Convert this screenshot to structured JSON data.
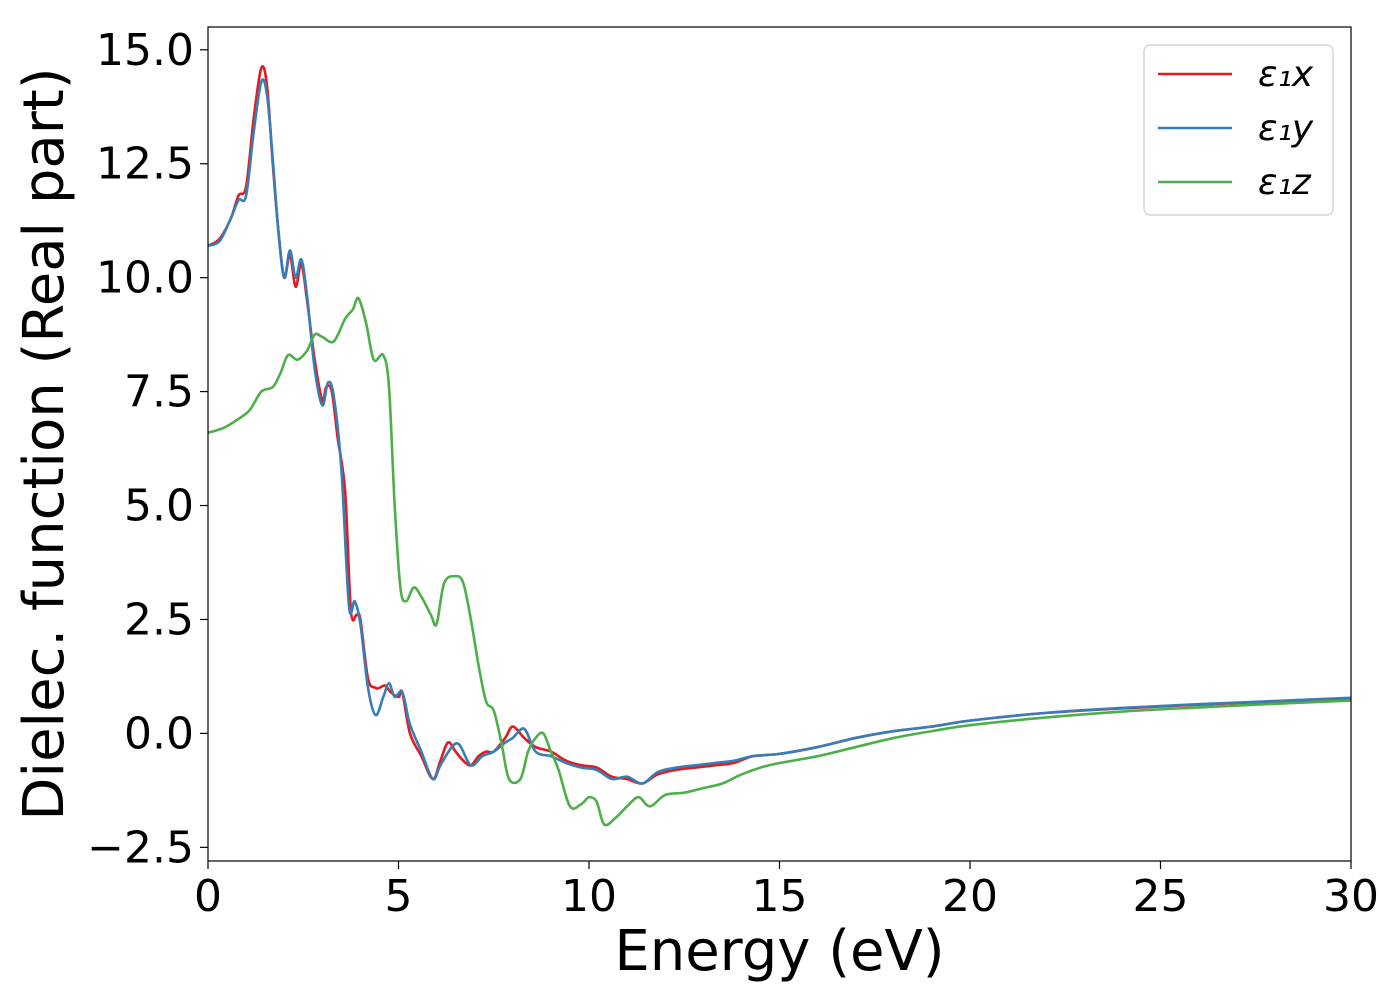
{
  "chart_data": {
    "type": "line",
    "title": "",
    "xlabel": "Energy (eV)",
    "ylabel": "Dielec. function (Real part)",
    "xlim": [
      0,
      30
    ],
    "ylim": [
      -2.8,
      15.5
    ],
    "xticks": [
      0,
      5,
      10,
      15,
      20,
      25,
      30
    ],
    "xtick_labels": [
      "0",
      "5",
      "10",
      "15",
      "20",
      "25",
      "30"
    ],
    "yticks": [
      -2.5,
      0.0,
      2.5,
      5.0,
      7.5,
      10.0,
      12.5,
      15.0
    ],
    "ytick_labels": [
      "−2.5",
      "0.0",
      "2.5",
      "5.0",
      "7.5",
      "10.0",
      "12.5",
      "15.0"
    ],
    "grid": false,
    "legend_position": "top-right",
    "series": [
      {
        "name": "ε₁x",
        "color": "#e41a1c",
        "points": [
          [
            0,
            10.7
          ],
          [
            0.3,
            10.85
          ],
          [
            0.6,
            11.3
          ],
          [
            0.8,
            11.8
          ],
          [
            1.0,
            12.0
          ],
          [
            1.2,
            13.5
          ],
          [
            1.4,
            14.6
          ],
          [
            1.55,
            14.2
          ],
          [
            1.7,
            12.5
          ],
          [
            1.85,
            11.0
          ],
          [
            2.0,
            10.0
          ],
          [
            2.15,
            10.5
          ],
          [
            2.3,
            9.8
          ],
          [
            2.45,
            10.3
          ],
          [
            2.6,
            9.5
          ],
          [
            2.8,
            8.2
          ],
          [
            3.0,
            7.3
          ],
          [
            3.1,
            7.6
          ],
          [
            3.25,
            7.5
          ],
          [
            3.4,
            6.5
          ],
          [
            3.6,
            5.3
          ],
          [
            3.75,
            2.7
          ],
          [
            3.9,
            2.6
          ],
          [
            4.0,
            2.5
          ],
          [
            4.2,
            1.2
          ],
          [
            4.4,
            1.0
          ],
          [
            4.5,
            1.0
          ],
          [
            4.65,
            1.05
          ],
          [
            4.8,
            0.9
          ],
          [
            5.0,
            0.8
          ],
          [
            5.1,
            0.9
          ],
          [
            5.3,
            0.0
          ],
          [
            5.6,
            -0.5
          ],
          [
            5.9,
            -1.0
          ],
          [
            6.1,
            -0.6
          ],
          [
            6.3,
            -0.2
          ],
          [
            6.5,
            -0.4
          ],
          [
            6.7,
            -0.6
          ],
          [
            6.9,
            -0.7
          ],
          [
            7.1,
            -0.5
          ],
          [
            7.3,
            -0.4
          ],
          [
            7.5,
            -0.4
          ],
          [
            7.8,
            -0.1
          ],
          [
            8.0,
            0.15
          ],
          [
            8.3,
            -0.1
          ],
          [
            8.6,
            -0.3
          ],
          [
            9.0,
            -0.4
          ],
          [
            9.4,
            -0.6
          ],
          [
            9.8,
            -0.7
          ],
          [
            10.2,
            -0.75
          ],
          [
            10.6,
            -0.95
          ],
          [
            11.0,
            -1.0
          ],
          [
            11.4,
            -1.1
          ],
          [
            11.8,
            -0.9
          ],
          [
            12.3,
            -0.8
          ],
          [
            12.8,
            -0.75
          ],
          [
            13.3,
            -0.7
          ],
          [
            13.8,
            -0.65
          ],
          [
            14.3,
            -0.5
          ],
          [
            15.0,
            -0.45
          ],
          [
            16.0,
            -0.3
          ],
          [
            17.0,
            -0.1
          ],
          [
            18.0,
            0.05
          ],
          [
            19.0,
            0.15
          ],
          [
            20.0,
            0.28
          ],
          [
            22.0,
            0.45
          ],
          [
            24.0,
            0.55
          ],
          [
            26.0,
            0.63
          ],
          [
            28.0,
            0.7
          ],
          [
            30.0,
            0.77
          ]
        ]
      },
      {
        "name": "ε₁y",
        "color": "#377eb8",
        "points": [
          [
            0,
            10.7
          ],
          [
            0.3,
            10.8
          ],
          [
            0.6,
            11.3
          ],
          [
            0.8,
            11.7
          ],
          [
            1.0,
            11.8
          ],
          [
            1.2,
            13.2
          ],
          [
            1.4,
            14.3
          ],
          [
            1.55,
            14.0
          ],
          [
            1.7,
            12.6
          ],
          [
            1.85,
            11.0
          ],
          [
            2.0,
            10.0
          ],
          [
            2.15,
            10.6
          ],
          [
            2.3,
            10.0
          ],
          [
            2.45,
            10.4
          ],
          [
            2.6,
            9.6
          ],
          [
            2.8,
            8.0
          ],
          [
            3.0,
            7.2
          ],
          [
            3.15,
            7.7
          ],
          [
            3.3,
            7.4
          ],
          [
            3.5,
            5.8
          ],
          [
            3.7,
            2.8
          ],
          [
            3.85,
            2.9
          ],
          [
            4.0,
            2.4
          ],
          [
            4.2,
            1.0
          ],
          [
            4.4,
            0.4
          ],
          [
            4.6,
            0.8
          ],
          [
            4.75,
            1.1
          ],
          [
            4.9,
            0.8
          ],
          [
            5.1,
            0.9
          ],
          [
            5.3,
            0.2
          ],
          [
            5.6,
            -0.4
          ],
          [
            5.9,
            -1.0
          ],
          [
            6.1,
            -0.7
          ],
          [
            6.4,
            -0.3
          ],
          [
            6.6,
            -0.25
          ],
          [
            6.9,
            -0.7
          ],
          [
            7.2,
            -0.5
          ],
          [
            7.5,
            -0.4
          ],
          [
            7.8,
            -0.2
          ],
          [
            8.0,
            -0.1
          ],
          [
            8.3,
            0.1
          ],
          [
            8.6,
            -0.4
          ],
          [
            9.0,
            -0.5
          ],
          [
            9.4,
            -0.65
          ],
          [
            9.8,
            -0.75
          ],
          [
            10.2,
            -0.8
          ],
          [
            10.6,
            -1.0
          ],
          [
            11.0,
            -0.95
          ],
          [
            11.4,
            -1.1
          ],
          [
            11.8,
            -0.85
          ],
          [
            12.3,
            -0.75
          ],
          [
            12.8,
            -0.7
          ],
          [
            13.3,
            -0.65
          ],
          [
            13.8,
            -0.6
          ],
          [
            14.3,
            -0.5
          ],
          [
            15.0,
            -0.45
          ],
          [
            16.0,
            -0.3
          ],
          [
            17.0,
            -0.1
          ],
          [
            18.0,
            0.05
          ],
          [
            19.0,
            0.15
          ],
          [
            20.0,
            0.28
          ],
          [
            22.0,
            0.45
          ],
          [
            24.0,
            0.56
          ],
          [
            26.0,
            0.64
          ],
          [
            28.0,
            0.71
          ],
          [
            30.0,
            0.78
          ]
        ]
      },
      {
        "name": "ε₁z",
        "color": "#4daf4a",
        "points": [
          [
            0,
            6.6
          ],
          [
            0.4,
            6.7
          ],
          [
            0.8,
            6.9
          ],
          [
            1.1,
            7.1
          ],
          [
            1.4,
            7.5
          ],
          [
            1.7,
            7.6
          ],
          [
            1.9,
            7.9
          ],
          [
            2.1,
            8.3
          ],
          [
            2.35,
            8.2
          ],
          [
            2.6,
            8.4
          ],
          [
            2.8,
            8.75
          ],
          [
            3.0,
            8.7
          ],
          [
            3.3,
            8.6
          ],
          [
            3.6,
            9.1
          ],
          [
            3.8,
            9.3
          ],
          [
            3.95,
            9.55
          ],
          [
            4.15,
            9.0
          ],
          [
            4.35,
            8.2
          ],
          [
            4.6,
            8.3
          ],
          [
            4.75,
            7.6
          ],
          [
            4.9,
            5.0
          ],
          [
            5.05,
            3.2
          ],
          [
            5.2,
            2.9
          ],
          [
            5.4,
            3.2
          ],
          [
            5.6,
            3.0
          ],
          [
            5.85,
            2.6
          ],
          [
            6.0,
            2.4
          ],
          [
            6.2,
            3.3
          ],
          [
            6.5,
            3.45
          ],
          [
            6.7,
            3.3
          ],
          [
            6.9,
            2.5
          ],
          [
            7.1,
            1.5
          ],
          [
            7.3,
            0.7
          ],
          [
            7.5,
            0.5
          ],
          [
            7.7,
            -0.2
          ],
          [
            7.9,
            -1.0
          ],
          [
            8.2,
            -1.0
          ],
          [
            8.4,
            -0.4
          ],
          [
            8.6,
            -0.1
          ],
          [
            8.8,
            0.0
          ],
          [
            9.0,
            -0.4
          ],
          [
            9.2,
            -0.8
          ],
          [
            9.5,
            -1.6
          ],
          [
            9.8,
            -1.55
          ],
          [
            10.0,
            -1.4
          ],
          [
            10.2,
            -1.5
          ],
          [
            10.4,
            -2.0
          ],
          [
            10.7,
            -1.85
          ],
          [
            11.0,
            -1.6
          ],
          [
            11.3,
            -1.4
          ],
          [
            11.6,
            -1.6
          ],
          [
            12.0,
            -1.35
          ],
          [
            12.5,
            -1.3
          ],
          [
            13.0,
            -1.2
          ],
          [
            13.5,
            -1.1
          ],
          [
            14.0,
            -0.9
          ],
          [
            14.5,
            -0.75
          ],
          [
            15.0,
            -0.65
          ],
          [
            16.0,
            -0.5
          ],
          [
            17.0,
            -0.3
          ],
          [
            18.0,
            -0.1
          ],
          [
            19.0,
            0.05
          ],
          [
            20.0,
            0.18
          ],
          [
            22.0,
            0.35
          ],
          [
            24.0,
            0.48
          ],
          [
            26.0,
            0.57
          ],
          [
            28.0,
            0.65
          ],
          [
            30.0,
            0.72
          ]
        ]
      }
    ]
  }
}
